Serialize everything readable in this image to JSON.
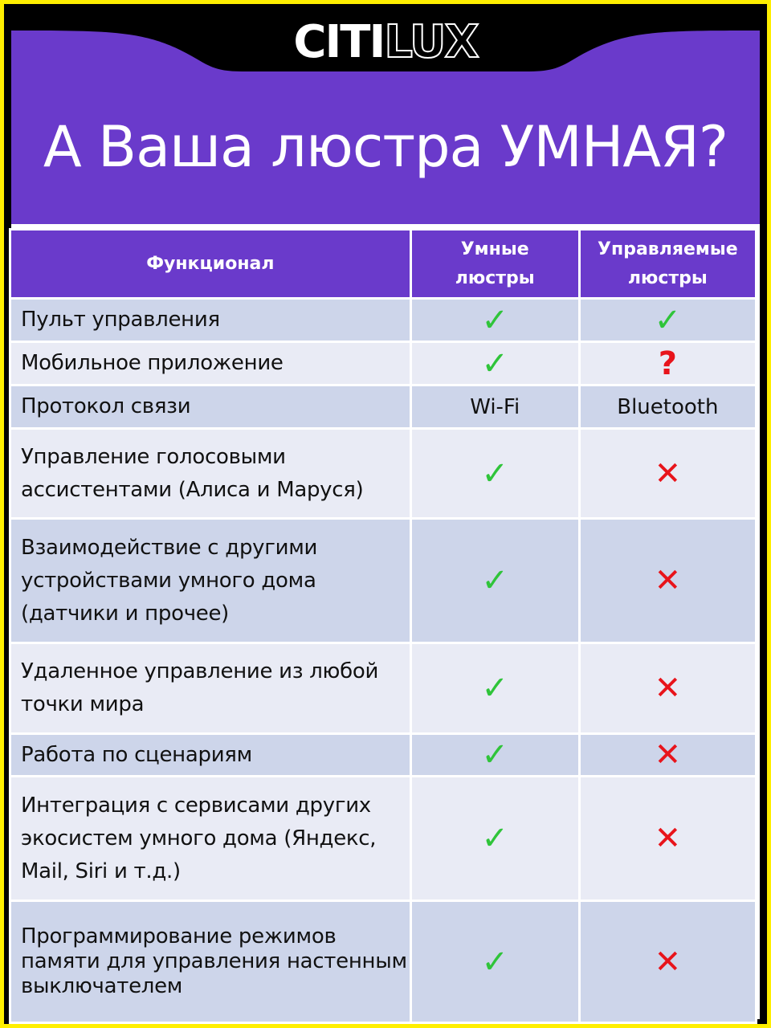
{
  "brand": {
    "logo_part1": "CITI",
    "logo_part2": "LUX"
  },
  "title": "А Ваша люстра УМНАЯ?",
  "colors": {
    "accent": "#6a3acb",
    "border": "#ffef00",
    "check": "#2fc43a",
    "cross": "#e8141b"
  },
  "table": {
    "headers": [
      "Функционал",
      "Умные люстры",
      "Управляемые люстры"
    ],
    "rows": [
      {
        "feature": "Пульт управления",
        "smart": "check",
        "controlled": "check"
      },
      {
        "feature": "Мобильное приложение",
        "smart": "check",
        "controlled": "question"
      },
      {
        "feature": "Протокол связи",
        "smart": "Wi-Fi",
        "controlled": "Bluetooth"
      },
      {
        "feature": "Управление голосовыми ассистентами (Алиса и Маруся)",
        "smart": "check",
        "controlled": "cross"
      },
      {
        "feature": "Взаимодействие с другими устройствами умного дома (датчики и прочее)",
        "smart": "check",
        "controlled": "cross"
      },
      {
        "feature": "Удаленное управление из любой точки мира",
        "smart": "check",
        "controlled": "cross"
      },
      {
        "feature": "Работа по сценариям",
        "smart": "check",
        "controlled": "cross"
      },
      {
        "feature": "Интеграция с сервисами других экосистем умного дома (Яндекс, Mail, Siri и т.д.)",
        "smart": "check",
        "controlled": "cross"
      },
      {
        "feature": "Программирование режимов памяти для управления настенным выключателем",
        "smart": "check",
        "controlled": "cross"
      }
    ]
  }
}
